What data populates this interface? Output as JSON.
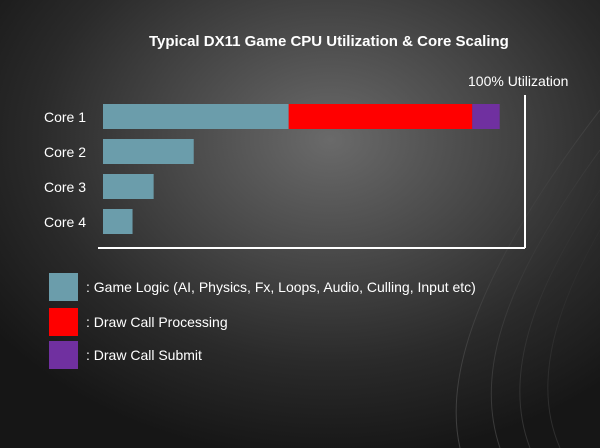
{
  "chart_data": {
    "type": "bar",
    "stacked": true,
    "orientation": "horizontal",
    "title": "Typical DX11 Game CPU Utilization & Core Scaling",
    "xmax_label": "100% Utilization",
    "xlim": [
      0,
      100
    ],
    "categories": [
      "Core 1",
      "Core 2",
      "Core 3",
      "Core 4"
    ],
    "series": [
      {
        "name": ": Game Logic (AI, Physics, Fx, Loops, Audio, Culling, Input etc)",
        "color": "#6b9dab",
        "values": [
          44,
          21.5,
          12,
          7
        ]
      },
      {
        "name": ": Draw Call Processing",
        "color": "#ff0000",
        "values": [
          43.5,
          0,
          0,
          0
        ]
      },
      {
        "name": ": Draw Call Submit",
        "color": "#7030a0",
        "values": [
          6.5,
          0,
          0,
          0
        ]
      }
    ],
    "grid": false,
    "legend_position": "bottom-left"
  }
}
